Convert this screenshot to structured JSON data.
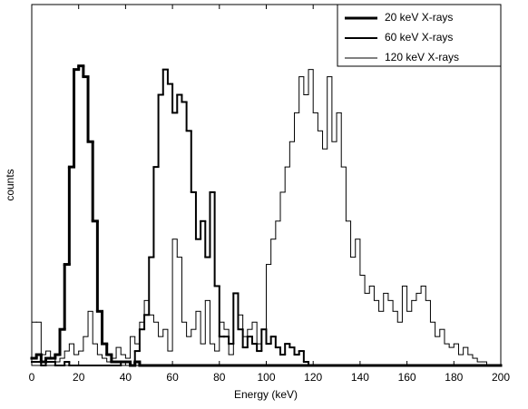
{
  "chart_data": {
    "type": "histogram",
    "xlabel": "Energy (keV)",
    "ylabel": "counts",
    "xlim": [
      0,
      200
    ],
    "xticks": [
      0,
      20,
      40,
      60,
      80,
      100,
      120,
      140,
      160,
      180,
      200
    ],
    "ylim": [
      0,
      100
    ],
    "legend": "upper right",
    "bins": [
      0,
      2,
      4,
      6,
      8,
      10,
      12,
      14,
      16,
      18,
      20,
      22,
      24,
      26,
      28,
      30,
      32,
      34,
      36,
      38,
      40,
      42,
      44,
      46,
      48,
      50,
      52,
      54,
      56,
      58,
      60,
      62,
      64,
      66,
      68,
      70,
      72,
      74,
      76,
      78,
      80,
      82,
      84,
      86,
      88,
      90,
      92,
      94,
      96,
      98,
      100,
      102,
      104,
      106,
      108,
      110,
      112,
      114,
      116,
      118,
      120,
      122,
      124,
      126,
      128,
      130,
      132,
      134,
      136,
      138,
      140,
      142,
      144,
      146,
      148,
      150,
      152,
      154,
      156,
      158,
      160,
      162,
      164,
      166,
      168,
      170,
      172,
      174,
      176,
      178,
      180,
      182,
      184,
      186,
      188,
      190,
      192,
      194,
      196,
      198,
      200
    ],
    "series": [
      {
        "name": "20 keV X-rays",
        "color": "#000000",
        "linewidth": 3,
        "values": [
          2,
          3,
          1,
          2,
          2,
          3,
          10,
          28,
          55,
          82,
          83,
          80,
          62,
          40,
          15,
          6,
          3,
          1,
          1,
          1,
          1,
          0,
          1,
          0,
          0,
          0,
          0,
          0,
          0,
          0,
          0,
          0,
          0,
          0,
          0,
          0,
          0,
          0,
          0,
          0,
          0,
          0,
          0,
          0,
          0,
          0,
          0,
          0,
          0,
          0,
          0,
          0,
          0,
          0,
          0,
          0,
          0,
          0,
          0,
          0,
          0,
          0,
          0,
          0,
          0,
          0,
          0,
          0,
          0,
          0,
          0,
          0,
          0,
          0,
          0,
          0,
          0,
          0,
          0,
          0,
          0,
          0,
          0,
          0,
          0,
          0,
          0,
          0,
          0,
          0,
          0,
          0,
          0,
          0,
          0,
          0,
          0,
          0,
          0,
          0
        ]
      },
      {
        "name": "60 keV X-rays",
        "color": "#000000",
        "linewidth": 2,
        "values": [
          1,
          1,
          0,
          1,
          1,
          0,
          0,
          1,
          0,
          0,
          0,
          0,
          0,
          0,
          0,
          0,
          0,
          0,
          0,
          1,
          1,
          0,
          4,
          10,
          14,
          30,
          55,
          75,
          82,
          78,
          70,
          75,
          73,
          65,
          48,
          35,
          40,
          30,
          48,
          22,
          8,
          8,
          6,
          20,
          10,
          5,
          8,
          6,
          4,
          10,
          6,
          8,
          5,
          3,
          6,
          5,
          3,
          4,
          1,
          0,
          0,
          0,
          0,
          0,
          0,
          0,
          0,
          0,
          0,
          0,
          0,
          0,
          0,
          0,
          0,
          0,
          0,
          0,
          0,
          0,
          0,
          0,
          0,
          0,
          0,
          0,
          0,
          0,
          0,
          0,
          0,
          0,
          0,
          0,
          0,
          0,
          0,
          0,
          0,
          0
        ]
      },
      {
        "name": "120 keV X-rays",
        "color": "#000000",
        "linewidth": 1,
        "values": [
          12,
          12,
          3,
          4,
          2,
          1,
          2,
          4,
          6,
          3,
          4,
          8,
          15,
          6,
          3,
          2,
          1,
          2,
          5,
          3,
          2,
          8,
          6,
          12,
          18,
          14,
          12,
          8,
          10,
          4,
          35,
          30,
          12,
          8,
          10,
          15,
          6,
          18,
          6,
          4,
          12,
          10,
          3,
          20,
          14,
          8,
          10,
          12,
          6,
          10,
          28,
          35,
          40,
          48,
          55,
          62,
          70,
          80,
          75,
          82,
          70,
          65,
          60,
          80,
          62,
          70,
          55,
          40,
          30,
          35,
          25,
          20,
          22,
          18,
          15,
          20,
          18,
          15,
          12,
          22,
          15,
          18,
          20,
          22,
          18,
          12,
          8,
          10,
          6,
          5,
          6,
          3,
          5,
          3,
          2,
          1,
          1,
          0,
          0,
          0
        ]
      }
    ]
  }
}
